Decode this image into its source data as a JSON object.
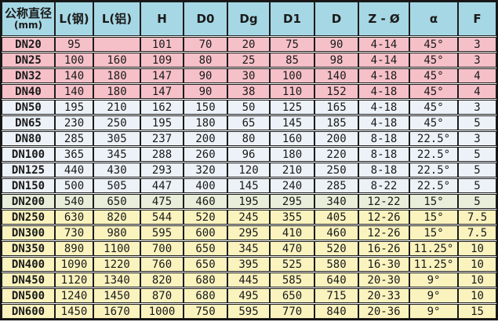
{
  "colors": {
    "header_bg": "#a6d7e4",
    "band_pink": "#f6c0c8",
    "band_blue": "#ecf2f8",
    "band_green": "#e8eed9",
    "band_yellow": "#faf3be",
    "grid_line": "#1c1c1c",
    "gap_line": "#fdfdfd",
    "text": "#1a1a1a"
  },
  "chart_data": {
    "type": "table",
    "title": "",
    "corner_header": [
      "公称直径",
      "(mm)"
    ],
    "columns": [
      "L(钢)",
      "L(铝)",
      "H",
      "D0",
      "Dg",
      "D1",
      "D",
      "Z - Ø",
      "α",
      "F"
    ],
    "rows": [
      {
        "label": "DN20",
        "band": "pink",
        "values": [
          "95",
          "",
          "101",
          "70",
          "20",
          "75",
          "90",
          "4-14",
          "45°",
          "3"
        ]
      },
      {
        "label": "DN25",
        "band": "pink",
        "values": [
          "100",
          "160",
          "109",
          "80",
          "25",
          "85",
          "98",
          "4-14",
          "45°",
          "3"
        ]
      },
      {
        "label": "DN32",
        "band": "pink",
        "values": [
          "140",
          "180",
          "147",
          "90",
          "30",
          "100",
          "140",
          "4-18",
          "45°",
          "4"
        ]
      },
      {
        "label": "DN40",
        "band": "pink",
        "values": [
          "140",
          "180",
          "147",
          "90",
          "38",
          "110",
          "152",
          "4-18",
          "45°",
          "4"
        ]
      },
      {
        "label": "DN50",
        "band": "blue",
        "values": [
          "195",
          "210",
          "162",
          "150",
          "50",
          "125",
          "165",
          "4-18",
          "45°",
          "3"
        ]
      },
      {
        "label": "DN65",
        "band": "blue",
        "values": [
          "230",
          "250",
          "195",
          "180",
          "65",
          "145",
          "185",
          "4-18",
          "45°",
          "5"
        ]
      },
      {
        "label": "DN80",
        "band": "blue",
        "values": [
          "285",
          "305",
          "237",
          "200",
          "80",
          "160",
          "200",
          "8-18",
          "22.5°",
          "3"
        ]
      },
      {
        "label": "DN100",
        "band": "blue",
        "values": [
          "365",
          "345",
          "288",
          "260",
          "96",
          "180",
          "220",
          "8-18",
          "22.5°",
          "5"
        ]
      },
      {
        "label": "DN125",
        "band": "blue",
        "values": [
          "440",
          "430",
          "293",
          "320",
          "120",
          "210",
          "250",
          "8-18",
          "22.5°",
          "5"
        ]
      },
      {
        "label": "DN150",
        "band": "blue",
        "values": [
          "500",
          "505",
          "447",
          "400",
          "145",
          "240",
          "285",
          "8-22",
          "22.5°",
          "5"
        ]
      },
      {
        "label": "DN200",
        "band": "green",
        "values": [
          "540",
          "650",
          "475",
          "460",
          "195",
          "295",
          "340",
          "12-22",
          "15°",
          "5"
        ]
      },
      {
        "label": "DN250",
        "band": "yellow",
        "values": [
          "630",
          "820",
          "544",
          "520",
          "245",
          "355",
          "405",
          "12-26",
          "15°",
          "7.5"
        ]
      },
      {
        "label": "DN300",
        "band": "yellow",
        "values": [
          "730",
          "980",
          "595",
          "600",
          "295",
          "410",
          "460",
          "12-26",
          "15°",
          "7.5"
        ]
      },
      {
        "label": "DN350",
        "band": "yellow",
        "values": [
          "890",
          "1100",
          "700",
          "650",
          "345",
          "470",
          "520",
          "16-26",
          "11.25°",
          "10"
        ]
      },
      {
        "label": "DN400",
        "band": "yellow",
        "values": [
          "1090",
          "1220",
          "760",
          "650",
          "395",
          "525",
          "580",
          "16-30",
          "11.25°",
          "10"
        ]
      },
      {
        "label": "DN450",
        "band": "yellow",
        "values": [
          "1120",
          "1340",
          "820",
          "680",
          "445",
          "585",
          "640",
          "20-30",
          "9°",
          "10"
        ]
      },
      {
        "label": "DN500",
        "band": "yellow",
        "values": [
          "1240",
          "1450",
          "870",
          "680",
          "495",
          "650",
          "715",
          "20-33",
          "9°",
          "10"
        ]
      },
      {
        "label": "DN600",
        "band": "yellow",
        "values": [
          "1450",
          "1670",
          "1000",
          "750",
          "595",
          "770",
          "840",
          "20-36",
          "9°",
          "15"
        ]
      }
    ]
  }
}
